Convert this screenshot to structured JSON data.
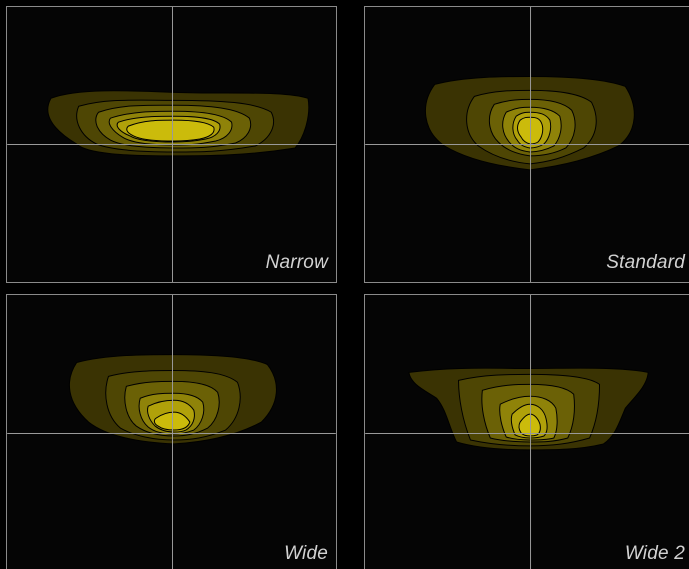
{
  "colors": {
    "background": "#000000",
    "panel_fill": "#050505",
    "crosshair": "#9a9a9a",
    "contour_line": "#000000",
    "levels": [
      "#3a3303",
      "#4e4604",
      "#6b6106",
      "#8f8309",
      "#b0a10a",
      "#cbbb0b"
    ]
  },
  "panels": [
    {
      "label": "Narrow"
    },
    {
      "label": "Standard"
    },
    {
      "label": "Wide"
    },
    {
      "label": "Wide 2"
    }
  ]
}
